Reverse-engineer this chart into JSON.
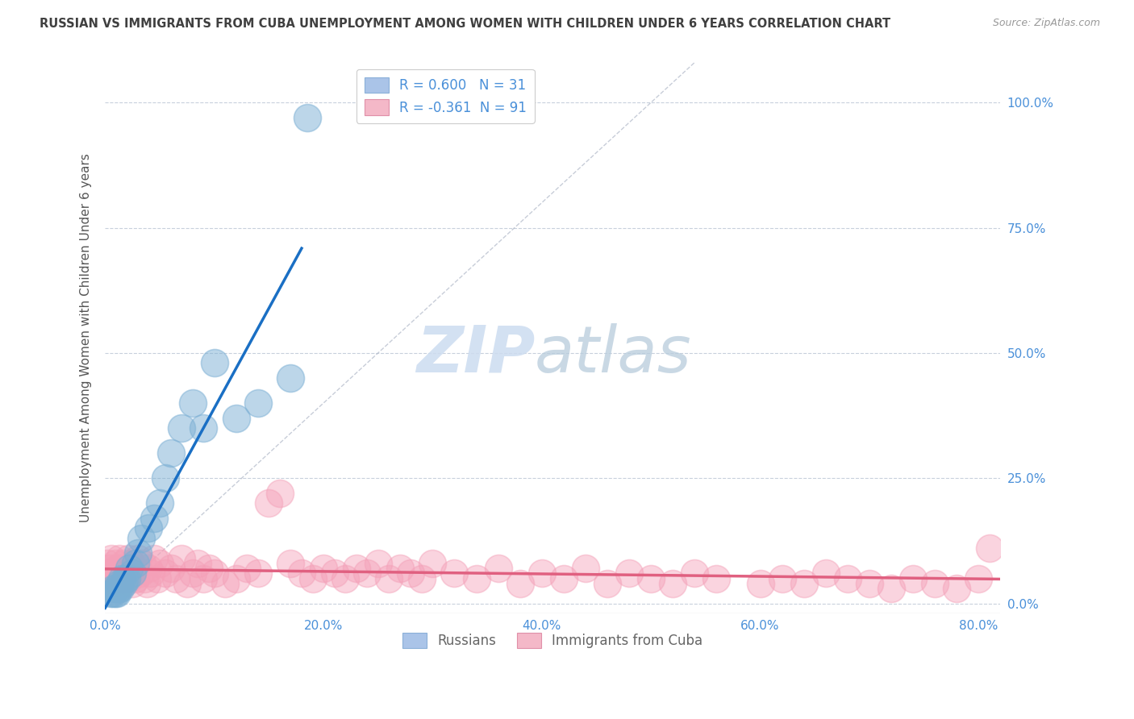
{
  "title": "RUSSIAN VS IMMIGRANTS FROM CUBA UNEMPLOYMENT AMONG WOMEN WITH CHILDREN UNDER 6 YEARS CORRELATION CHART",
  "source": "Source: ZipAtlas.com",
  "ylabel": "Unemployment Among Women with Children Under 6 years",
  "xlim": [
    0.0,
    0.82
  ],
  "ylim": [
    -0.02,
    1.08
  ],
  "xticks": [
    0.0,
    0.2,
    0.4,
    0.6,
    0.8
  ],
  "yticks": [
    0.0,
    0.25,
    0.5,
    0.75,
    1.0
  ],
  "xticklabels": [
    "0.0%",
    "20.0%",
    "40.0%",
    "60.0%",
    "80.0%"
  ],
  "yticklabels": [
    "0.0%",
    "25.0%",
    "50.0%",
    "75.0%",
    "100.0%"
  ],
  "russians_x": [
    0.005,
    0.007,
    0.008,
    0.009,
    0.01,
    0.011,
    0.012,
    0.013,
    0.014,
    0.015,
    0.017,
    0.018,
    0.02,
    0.022,
    0.025,
    0.028,
    0.03,
    0.033,
    0.04,
    0.045,
    0.05,
    0.055,
    0.06,
    0.07,
    0.08,
    0.09,
    0.1,
    0.12,
    0.14,
    0.17,
    0.185
  ],
  "russians_y": [
    0.02,
    0.02,
    0.03,
    0.02,
    0.03,
    0.02,
    0.03,
    0.04,
    0.03,
    0.05,
    0.04,
    0.05,
    0.05,
    0.07,
    0.06,
    0.08,
    0.1,
    0.13,
    0.15,
    0.17,
    0.2,
    0.25,
    0.3,
    0.35,
    0.4,
    0.35,
    0.48,
    0.37,
    0.4,
    0.45,
    0.97
  ],
  "cuba_x": [
    0.002,
    0.003,
    0.004,
    0.005,
    0.006,
    0.007,
    0.008,
    0.009,
    0.01,
    0.011,
    0.012,
    0.013,
    0.014,
    0.015,
    0.016,
    0.017,
    0.018,
    0.019,
    0.02,
    0.021,
    0.022,
    0.023,
    0.024,
    0.025,
    0.026,
    0.028,
    0.03,
    0.032,
    0.034,
    0.036,
    0.038,
    0.04,
    0.042,
    0.045,
    0.048,
    0.05,
    0.055,
    0.06,
    0.065,
    0.07,
    0.075,
    0.08,
    0.085,
    0.09,
    0.095,
    0.1,
    0.11,
    0.12,
    0.13,
    0.14,
    0.15,
    0.16,
    0.17,
    0.18,
    0.19,
    0.2,
    0.21,
    0.22,
    0.23,
    0.24,
    0.25,
    0.26,
    0.27,
    0.28,
    0.29,
    0.3,
    0.32,
    0.34,
    0.36,
    0.38,
    0.4,
    0.42,
    0.44,
    0.46,
    0.48,
    0.5,
    0.52,
    0.54,
    0.56,
    0.6,
    0.62,
    0.64,
    0.66,
    0.68,
    0.7,
    0.72,
    0.74,
    0.76,
    0.78,
    0.8,
    0.81
  ],
  "cuba_y": [
    0.08,
    0.06,
    0.07,
    0.05,
    0.09,
    0.04,
    0.06,
    0.08,
    0.05,
    0.07,
    0.06,
    0.09,
    0.04,
    0.07,
    0.05,
    0.08,
    0.06,
    0.05,
    0.07,
    0.09,
    0.05,
    0.06,
    0.08,
    0.04,
    0.07,
    0.05,
    0.09,
    0.06,
    0.08,
    0.05,
    0.04,
    0.07,
    0.06,
    0.09,
    0.05,
    0.08,
    0.06,
    0.07,
    0.05,
    0.09,
    0.04,
    0.06,
    0.08,
    0.05,
    0.07,
    0.06,
    0.04,
    0.05,
    0.07,
    0.06,
    0.2,
    0.22,
    0.08,
    0.06,
    0.05,
    0.07,
    0.06,
    0.05,
    0.07,
    0.06,
    0.08,
    0.05,
    0.07,
    0.06,
    0.05,
    0.08,
    0.06,
    0.05,
    0.07,
    0.04,
    0.06,
    0.05,
    0.07,
    0.04,
    0.06,
    0.05,
    0.04,
    0.06,
    0.05,
    0.04,
    0.05,
    0.04,
    0.06,
    0.05,
    0.04,
    0.03,
    0.05,
    0.04,
    0.03,
    0.05,
    0.11
  ],
  "russian_dot_color": "#7bafd4",
  "cuba_dot_color": "#f4a0b8",
  "russian_line_color": "#1a6fc4",
  "cuba_line_color": "#e06080",
  "diag_line_color": "#b0b8c8",
  "watermark_zip": "ZIP",
  "watermark_atlas": "atlas",
  "background_color": "#ffffff",
  "grid_color": "#c8d0dc",
  "title_color": "#404040",
  "axis_label_color": "#555555",
  "tick_label_color": "#4a90d9",
  "legend_text_color": "#4a90d9",
  "legend_R1": "R = 0.600",
  "legend_N1": "N = 31",
  "legend_R2": "R = -0.361",
  "legend_N2": "N = 91",
  "bottom_legend_1": "Russians",
  "bottom_legend_2": "Immigrants from Cuba"
}
